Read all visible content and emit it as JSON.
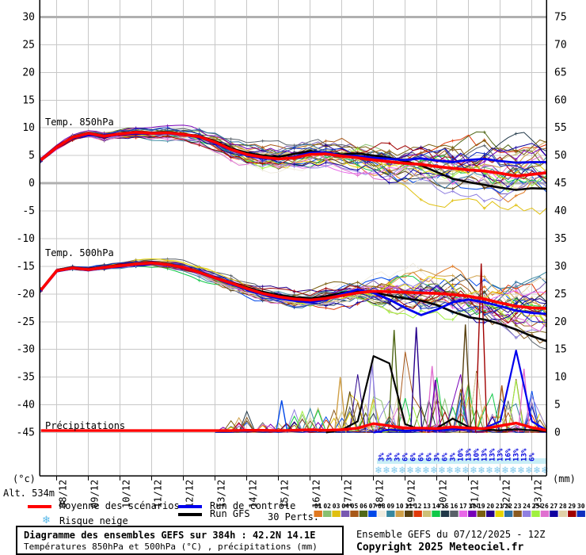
{
  "meta": {
    "alt_label": "Alt. 534m",
    "credit_line1": "Ensemble GEFS du 07/12/2025 - 12Z",
    "credit_line2": "Copyright 2025 Meteociel.fr"
  },
  "title_box": {
    "line1": "Diagramme des ensembles GEFS sur 384h : 42.2N 14.1E",
    "line2": "Températures 850hPa et 500hPa (°C) , précipitations (mm)"
  },
  "legend": {
    "mean_label": "Moyenne des scénarios",
    "control_label": "Run de contrôle",
    "gfs_label": "Run GFS",
    "perts_label": "30 Perts.",
    "snow_label": "Risque neige",
    "mean_color": "#FF0000",
    "control_color": "#0000EE",
    "gfs_color": "#000000",
    "snow_icon": "❄"
  },
  "axes": {
    "left_unit": "(°c)",
    "right_unit": "(mm)",
    "left_ticks": [
      "30",
      "25",
      "20",
      "15",
      "10",
      "5",
      "0",
      "-5",
      "-10",
      "-15",
      "-20",
      "-25",
      "-30",
      "-35",
      "-40",
      "-45"
    ],
    "right_ticks": [
      "75",
      "70",
      "65",
      "60",
      "55",
      "50",
      "45",
      "40",
      "35",
      "30",
      "25",
      "20",
      "15",
      "10",
      "5",
      "0"
    ],
    "dates": [
      "08/12",
      "09/12",
      "10/12",
      "11/12",
      "12/12",
      "13/12",
      "14/12",
      "15/12",
      "16/12",
      "17/12",
      "18/12",
      "19/12",
      "20/12",
      "21/12",
      "22/12",
      "23/12"
    ]
  },
  "chart_data": {
    "type": "line",
    "title": "Diagramme des ensembles GEFS sur 384h : 42.2N 14.1E",
    "x_axis": {
      "start": "07/12 12Z",
      "end": "23/12 12Z",
      "days_total": 16,
      "date_labels_at_00z": true
    },
    "y_left": {
      "label": "(°c)",
      "min": -45,
      "max": 30,
      "step": 5
    },
    "y_right": {
      "label": "(mm)",
      "min": 0,
      "max": 75,
      "step": 5
    },
    "grid": {
      "color": "#C8C8C8",
      "bold_lines_at_c": [
        30,
        0
      ],
      "bold_color": "#B0B0B0"
    },
    "step_days": 0.5,
    "panels": {
      "temp850": {
        "label": "Temp. 850hPa",
        "mean": [
          4.2,
          6.5,
          8.3,
          9.0,
          8.5,
          8.9,
          9.2,
          9.0,
          9.1,
          8.8,
          8.4,
          7.4,
          6.1,
          5.2,
          4.7,
          4.4,
          4.6,
          5.2,
          5.3,
          4.9,
          4.6,
          4.2,
          3.9,
          3.6,
          3.4,
          3.0,
          2.7,
          2.4,
          2.2,
          1.8,
          1.3,
          1.6,
          1.9
        ],
        "control": [
          4.2,
          6.4,
          8.2,
          8.8,
          8.4,
          8.8,
          9.0,
          8.9,
          9.0,
          8.7,
          8.3,
          7.2,
          6.0,
          5.0,
          4.5,
          4.3,
          4.8,
          5.5,
          5.6,
          5.0,
          4.9,
          4.6,
          4.4,
          4.2,
          4.5,
          4.1,
          3.8,
          4.2,
          4.4,
          4.0,
          3.7,
          3.8,
          3.8
        ],
        "gfs": [
          4.3,
          6.6,
          8.4,
          9.1,
          8.6,
          9.0,
          9.3,
          9.1,
          9.2,
          8.9,
          8.5,
          7.6,
          6.3,
          5.5,
          5.0,
          4.8,
          5.3,
          5.8,
          5.5,
          5.2,
          5.4,
          5.0,
          4.6,
          4.0,
          3.2,
          2.0,
          0.8,
          0.2,
          -0.3,
          -0.8,
          -1.2,
          -0.9,
          -1.0
        ],
        "env_lo": [
          3.6,
          5.8,
          7.4,
          8.0,
          7.4,
          7.8,
          8.0,
          7.6,
          7.4,
          7.0,
          6.2,
          5.0,
          3.8,
          2.6,
          1.8,
          1.4,
          1.6,
          1.8,
          1.6,
          1.0,
          0.2,
          -0.8,
          -1.8,
          -2.6,
          -3.2,
          -3.8,
          -4.4,
          -5.2,
          -6.0,
          -6.6,
          -6.4,
          -6.0,
          -5.8
        ],
        "env_hi": [
          5.0,
          7.2,
          9.2,
          9.8,
          9.6,
          10.0,
          10.4,
          10.4,
          10.6,
          10.4,
          10.2,
          9.6,
          8.6,
          7.8,
          7.4,
          7.4,
          7.6,
          8.4,
          8.6,
          8.6,
          8.8,
          8.8,
          9.0,
          8.8,
          8.8,
          8.6,
          8.4,
          8.2,
          8.0,
          8.0,
          8.2,
          8.4,
          8.6
        ]
      },
      "temp500": {
        "label": "Temp. 500hPa",
        "mean": [
          -19.3,
          -15.8,
          -15.3,
          -15.6,
          -15.2,
          -14.9,
          -14.6,
          -14.4,
          -14.7,
          -15.2,
          -16.1,
          -17.1,
          -18.0,
          -19.0,
          -19.9,
          -20.5,
          -20.9,
          -21.1,
          -20.8,
          -20.3,
          -19.8,
          -19.5,
          -19.6,
          -19.7,
          -19.8,
          -19.9,
          -20.1,
          -20.4,
          -20.9,
          -21.6,
          -22.2,
          -22.5,
          -22.6
        ],
        "control": [
          -19.4,
          -15.9,
          -15.4,
          -15.7,
          -15.3,
          -15.0,
          -14.7,
          -14.5,
          -14.8,
          -15.3,
          -16.2,
          -17.2,
          -18.2,
          -19.2,
          -20.1,
          -20.8,
          -21.2,
          -21.5,
          -21.0,
          -20.0,
          -19.2,
          -19.8,
          -21.0,
          -22.5,
          -23.8,
          -22.8,
          -21.5,
          -21.0,
          -21.5,
          -22.2,
          -23.0,
          -23.4,
          -23.6
        ],
        "gfs": [
          -19.3,
          -15.7,
          -15.2,
          -15.5,
          -15.1,
          -14.8,
          -14.5,
          -14.3,
          -14.6,
          -15.1,
          -16.0,
          -17.0,
          -17.9,
          -18.8,
          -19.6,
          -20.2,
          -20.6,
          -20.8,
          -20.4,
          -19.8,
          -19.4,
          -19.7,
          -20.3,
          -20.8,
          -21.2,
          -22.0,
          -23.2,
          -24.2,
          -24.6,
          -25.4,
          -26.4,
          -27.6,
          -28.6
        ],
        "env_lo": [
          -20.0,
          -16.5,
          -16.0,
          -16.3,
          -16.0,
          -15.8,
          -15.5,
          -15.4,
          -15.8,
          -16.4,
          -17.5,
          -18.8,
          -20.0,
          -21.2,
          -22.2,
          -23.0,
          -23.4,
          -23.4,
          -23.2,
          -23.0,
          -23.6,
          -24.4,
          -24.8,
          -25.4,
          -25.8,
          -25.6,
          -26.0,
          -26.6,
          -27.4,
          -28.2,
          -28.8,
          -29.6,
          -30.6
        ],
        "env_hi": [
          -18.6,
          -15.0,
          -14.6,
          -14.9,
          -14.4,
          -14.0,
          -13.6,
          -13.4,
          -13.6,
          -14.0,
          -14.8,
          -15.6,
          -16.4,
          -17.2,
          -18.0,
          -18.4,
          -18.6,
          -18.2,
          -17.6,
          -16.8,
          -16.0,
          -15.2,
          -14.6,
          -14.0,
          -13.6,
          -13.4,
          -13.2,
          -13.4,
          -13.6,
          -13.4,
          -13.2,
          -13.4,
          -13.2
        ]
      },
      "precip": {
        "label": "Précipitations",
        "mean": [
          0,
          0,
          0,
          0,
          0,
          0,
          0,
          0,
          0,
          0,
          0,
          0.2,
          0.3,
          0.4,
          0.4,
          0.3,
          0.4,
          0.5,
          0.4,
          0.5,
          0.8,
          1.6,
          1.2,
          0.8,
          0.8,
          0.7,
          1.0,
          0.8,
          0.7,
          1.2,
          1.7,
          0.9,
          0.3
        ],
        "control": [
          0,
          0,
          0,
          0,
          0,
          0,
          0,
          0,
          0,
          0,
          0,
          0,
          0,
          0,
          0,
          0,
          0,
          0,
          0,
          0,
          0,
          0,
          0.5,
          0.3,
          0.5,
          0.4,
          0.6,
          0.5,
          0.8,
          2.0,
          14.8,
          2.0,
          0.3
        ],
        "gfs": [
          0,
          0,
          0,
          0,
          0,
          0,
          0,
          0,
          0,
          0,
          0,
          0,
          0,
          0,
          0,
          0,
          0,
          0,
          0,
          0.5,
          2.0,
          13.8,
          12.5,
          1.5,
          0.5,
          0.8,
          2.5,
          1.0,
          0.5,
          0.4,
          0.6,
          0.4,
          0.2
        ],
        "env_max": [
          0,
          0,
          0,
          0,
          0,
          0,
          0,
          0,
          0,
          0,
          0.5,
          1.5,
          3,
          6,
          4,
          3,
          5,
          8,
          5,
          9,
          13,
          13,
          8,
          18,
          10,
          20,
          9,
          19,
          12,
          9,
          15,
          12,
          4
        ],
        "spikes": [
          {
            "day": 7.6,
            "mm": 5.8,
            "color": "#0048E8"
          },
          {
            "day": 9.45,
            "mm": 10.0,
            "color": "#D0A048"
          },
          {
            "day": 10.45,
            "mm": 12.5,
            "color": "#9080E0"
          },
          {
            "day": 11.15,
            "mm": 18.5,
            "color": "#506818"
          },
          {
            "day": 11.85,
            "mm": 19.0,
            "color": "#28008C"
          },
          {
            "day": 12.35,
            "mm": 12.0,
            "color": "#E070D0"
          },
          {
            "day": 12.45,
            "mm": 9.5,
            "color": "#7800B8"
          },
          {
            "day": 13.4,
            "mm": 19.5,
            "color": "#584010"
          },
          {
            "day": 13.9,
            "mm": 30.5,
            "color": "#A00000"
          },
          {
            "day": 14.55,
            "mm": 8.5,
            "color": "#A85818"
          },
          {
            "day": 15.25,
            "mm": 11.5,
            "color": "#E070D0"
          }
        ]
      }
    },
    "snow_risk": {
      "start_day": 10.625,
      "step_day": 0.25,
      "percentages": [
        "3%",
        "3%",
        "3%",
        "6%",
        "6%",
        "6%",
        "6%",
        "3%",
        "6%",
        "3%",
        "10%",
        "13%",
        "10%",
        "13%",
        "13%",
        "13%",
        "16%",
        "13%",
        "13%",
        "6%"
      ],
      "text_color": "#0000DD",
      "band_color": "#C8EEF6",
      "flake_color": "#7EC8EC",
      "flake_icon": "❄"
    },
    "perts": {
      "numbers": [
        "01",
        "02",
        "03",
        "04",
        "05",
        "06",
        "07",
        "08",
        "09",
        "10",
        "11",
        "12",
        "13",
        "14",
        "15",
        "16",
        "17",
        "18",
        "19",
        "20",
        "21",
        "22",
        "23",
        "24",
        "25",
        "26",
        "27",
        "28",
        "29",
        "30"
      ],
      "colors": [
        "#E07820",
        "#88C070",
        "#E0C010",
        "#7858B0",
        "#A85818",
        "#506818",
        "#0048E8",
        "#F0ECE0",
        "#3888A0",
        "#D0A048",
        "#584010",
        "#E03808",
        "#CCC078",
        "#10C848",
        "#203848",
        "#586068",
        "#E868E8",
        "#7800B8",
        "#7A6010",
        "#28008C",
        "#E8D400",
        "#3070A0",
        "#8A5A20",
        "#9080E0",
        "#A0F040",
        "#E070D0",
        "#1000A0",
        "#E0D0A8",
        "#A00000",
        "#1030C0"
      ]
    }
  }
}
